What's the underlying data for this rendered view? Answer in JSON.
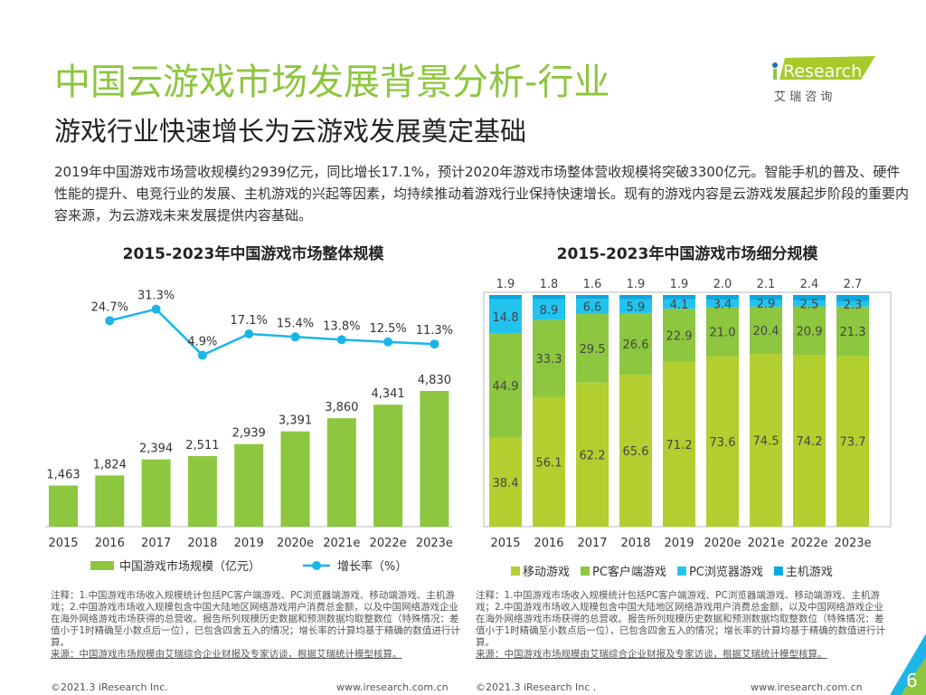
{
  "header": {
    "title": "中国云游戏市场发展背景分析-行业",
    "subtitle": "游戏行业快速增长为云游戏发展奠定基础",
    "logo_text": "iResearch",
    "logo_cn": "艾 瑞 咨 询"
  },
  "intro": "2019年中国游戏市场营收规模约2939亿元，同比增长17.1%，预计2020年游戏市场整体营收规模将突破3300亿元。智能手机的普及、硬件性能的提升、电竞行业的发展、主机游戏的兴起等因素，均持续推动着游戏行业保持快速增长。现有的游戏内容是云游戏发展起步阶段的重要内容来源，为云游戏未来发展提供内容基础。",
  "chart_data": [
    {
      "type": "bar+line",
      "title": "2015-2023年中国游戏市场整体规模",
      "categories": [
        "2015",
        "2016",
        "2017",
        "2018",
        "2019",
        "2020e",
        "2021e",
        "2022e",
        "2023e"
      ],
      "series": [
        {
          "name": "中国游戏市场规模（亿元）",
          "type": "bar",
          "color": "#8dc63f",
          "values": [
            1463,
            1824,
            2394,
            2511,
            2939,
            3391,
            3860,
            4341,
            4830
          ],
          "labels": [
            "1,463",
            "1,824",
            "2,394",
            "2,511",
            "2,939",
            "3,391",
            "3,860",
            "4,341",
            "4,830"
          ]
        },
        {
          "name": "增长率（%）",
          "type": "line",
          "color": "#1cb5e8",
          "values": [
            null,
            24.7,
            31.3,
            4.9,
            17.1,
            15.4,
            13.8,
            12.5,
            11.3
          ],
          "labels": [
            "",
            "24.7%",
            "31.3%",
            "4.9%",
            "17.1%",
            "15.4%",
            "13.8%",
            "12.5%",
            "11.3%"
          ]
        }
      ],
      "legend": "bottom"
    },
    {
      "type": "stacked-bar-100",
      "title": "2015-2023年中国游戏市场细分规模",
      "categories": [
        "2015",
        "2016",
        "2017",
        "2018",
        "2019",
        "2020e",
        "2021e",
        "2022e",
        "2023e"
      ],
      "series": [
        {
          "name": "移动游戏",
          "color": "#b3cf2f",
          "values": [
            38.4,
            56.1,
            62.2,
            65.6,
            71.2,
            73.6,
            74.5,
            74.2,
            73.7
          ]
        },
        {
          "name": "PC客户端游戏",
          "color": "#8dc63f",
          "values": [
            44.9,
            33.3,
            29.5,
            26.6,
            22.9,
            21.0,
            20.4,
            20.9,
            21.3
          ]
        },
        {
          "name": "PC浏览器游戏",
          "color": "#22c4ef",
          "values": [
            14.8,
            8.9,
            6.6,
            5.9,
            4.1,
            3.4,
            2.9,
            2.5,
            2.3
          ]
        },
        {
          "name": "主机游戏",
          "color": "#0aa8df",
          "values": [
            1.9,
            1.8,
            1.6,
            1.9,
            1.9,
            2.0,
            2.1,
            2.4,
            2.7
          ]
        }
      ],
      "legend": "bottom"
    }
  ],
  "notes": {
    "text": "注释：1.中国游戏市场收入规模统计包括PC客户端游戏、PC浏览器端游戏、移动端游戏、主机游戏；2.中国游戏市场收入规模包含中国大陆地区网络游戏用户消费总金额，以及中国网络游戏企业在海外网络游戏市场获得的总营收。报告所列规模历史数据和预测数据均取整数位（特殊情况：差值小于1时精确至小数点后一位），已包含四舍五入的情况；增长率的计算均基于精确的数值进行计算。",
    "source": "来源：中国游戏市场规模由艾瑞综合企业财报及专家访谈，根据艾瑞统计模型核算。"
  },
  "footer": {
    "copyright_left": "©2021.3 iResearch Inc.",
    "copyright_right": "©2021.3 iResearch Inc .",
    "url": "www.iresearch.com.cn",
    "page": "6"
  }
}
